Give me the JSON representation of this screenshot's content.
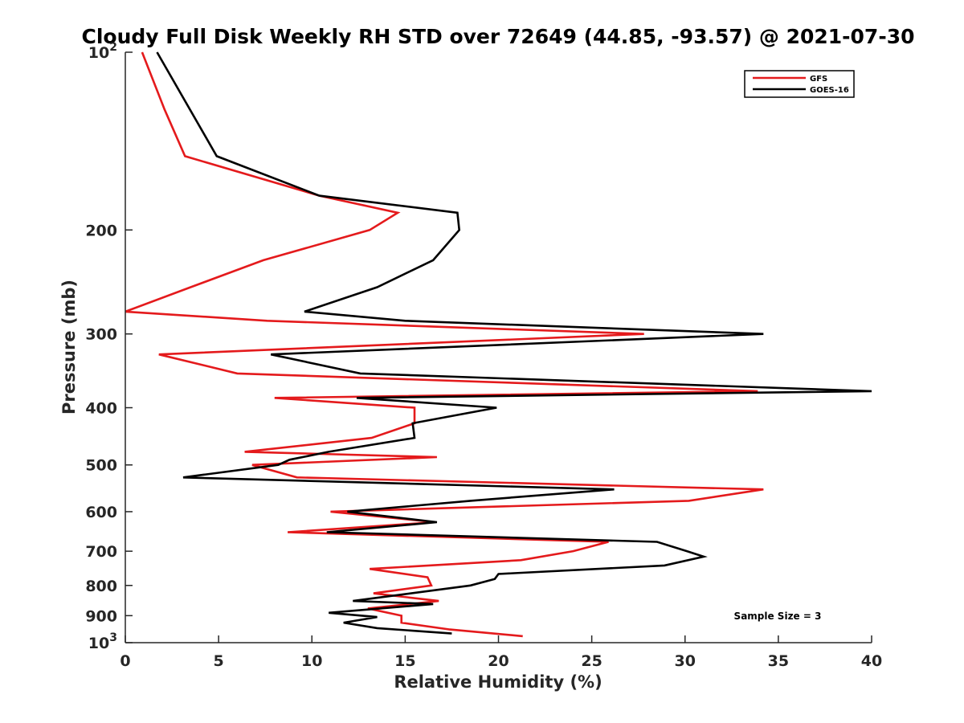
{
  "chart_data": {
    "type": "line",
    "title": "Cloudy Full Disk Weekly RH STD over 72649 (44.85, -93.57) @ 2021-07-30",
    "xlabel": "Relative Humidity (%)",
    "ylabel": "Pressure (mb)",
    "xlim": [
      0,
      40
    ],
    "ylim": [
      100,
      1000
    ],
    "y_scale": "log",
    "y_reversed": true,
    "x_ticks": [
      0,
      5,
      10,
      15,
      20,
      25,
      30,
      35,
      40
    ],
    "x_tick_labels": [
      "0",
      "5",
      "10",
      "15",
      "20",
      "25",
      "30",
      "35",
      "40"
    ],
    "y_ticks": [
      100,
      200,
      300,
      400,
      500,
      600,
      700,
      800,
      900,
      1000
    ],
    "y_tick_labels": [
      {
        "base": "10",
        "sup": "2"
      },
      {
        "base": "200",
        "sup": ""
      },
      {
        "base": "300",
        "sup": ""
      },
      {
        "base": "400",
        "sup": ""
      },
      {
        "base": "500",
        "sup": ""
      },
      {
        "base": "600",
        "sup": ""
      },
      {
        "base": "700",
        "sup": ""
      },
      {
        "base": "800",
        "sup": ""
      },
      {
        "base": "900",
        "sup": ""
      },
      {
        "base": "10",
        "sup": "3"
      }
    ],
    "legend_position": "top-right",
    "annotation": "Sample Size = 3",
    "series": [
      {
        "name": "GFS",
        "color": "#e41a1c",
        "points": [
          [
            0.9,
            100
          ],
          [
            2.1,
            125
          ],
          [
            3.2,
            150
          ],
          [
            10.4,
            175
          ],
          [
            14.6,
            187
          ],
          [
            13.1,
            200
          ],
          [
            7.4,
            225
          ],
          [
            3.5,
            250
          ],
          [
            0.0,
            275
          ],
          [
            7.6,
            285
          ],
          [
            27.8,
            300
          ],
          [
            1.8,
            325
          ],
          [
            6.0,
            350
          ],
          [
            33.9,
            375
          ],
          [
            8.0,
            385
          ],
          [
            15.5,
            400
          ],
          [
            15.5,
            425
          ],
          [
            13.2,
            450
          ],
          [
            6.4,
            475
          ],
          [
            16.7,
            485
          ],
          [
            6.8,
            500
          ],
          [
            9.2,
            525
          ],
          [
            34.2,
            550
          ],
          [
            30.2,
            575
          ],
          [
            11.0,
            600
          ],
          [
            16.6,
            625
          ],
          [
            8.7,
            650
          ],
          [
            25.9,
            675
          ],
          [
            24.0,
            700
          ],
          [
            21.2,
            725
          ],
          [
            13.1,
            750
          ],
          [
            16.2,
            775
          ],
          [
            16.4,
            800
          ],
          [
            13.3,
            825
          ],
          [
            16.8,
            850
          ],
          [
            13.0,
            875
          ],
          [
            14.8,
            900
          ],
          [
            14.8,
            925
          ],
          [
            17.4,
            950
          ],
          [
            21.3,
            975
          ]
        ]
      },
      {
        "name": "GOES-16",
        "color": "#000000",
        "points": [
          [
            1.7,
            100
          ],
          [
            4.9,
            150
          ],
          [
            10.4,
            175
          ],
          [
            17.8,
            187
          ],
          [
            17.9,
            200
          ],
          [
            16.5,
            225
          ],
          [
            13.5,
            250
          ],
          [
            9.6,
            275
          ],
          [
            15.0,
            285
          ],
          [
            34.2,
            300
          ],
          [
            7.8,
            325
          ],
          [
            12.6,
            350
          ],
          [
            40.0,
            375
          ],
          [
            12.4,
            385
          ],
          [
            19.9,
            400
          ],
          [
            15.4,
            425
          ],
          [
            15.5,
            450
          ],
          [
            10.9,
            475
          ],
          [
            8.8,
            490
          ],
          [
            8.2,
            500
          ],
          [
            3.1,
            525
          ],
          [
            26.2,
            550
          ],
          [
            18.5,
            575
          ],
          [
            11.9,
            600
          ],
          [
            16.7,
            625
          ],
          [
            10.8,
            650
          ],
          [
            28.5,
            675
          ],
          [
            30.1,
            700
          ],
          [
            31.0,
            715
          ],
          [
            28.9,
            740
          ],
          [
            20.0,
            765
          ],
          [
            19.8,
            780
          ],
          [
            18.5,
            800
          ],
          [
            12.2,
            850
          ],
          [
            16.5,
            860
          ],
          [
            10.9,
            890
          ],
          [
            13.5,
            905
          ],
          [
            11.7,
            925
          ],
          [
            13.5,
            945
          ],
          [
            17.5,
            965
          ]
        ]
      }
    ]
  }
}
